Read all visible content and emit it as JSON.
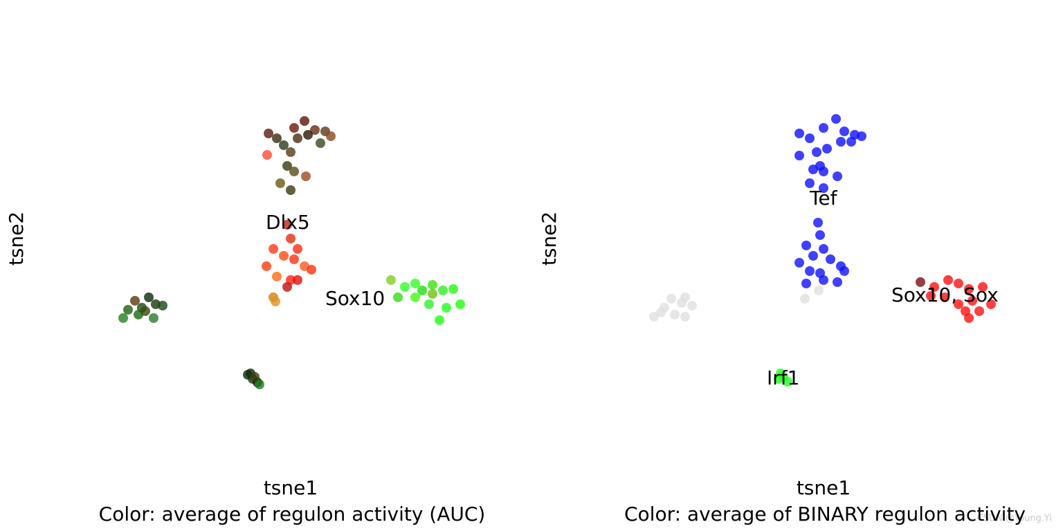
{
  "chart_data": [
    {
      "type": "scatter",
      "xlabel": "tsne1",
      "ylabel": "tsne2",
      "caption": "Color: average of regulon activity (AUC)",
      "xlim": [
        0,
        640
      ],
      "ylim": [
        0,
        640
      ],
      "series": [
        {
          "x": [
            288,
            300,
            310,
            325,
            340,
            355,
            370,
            378,
            363,
            330,
            320,
            315,
            325,
            305,
            320,
            286,
            342,
            345
          ],
          "values": [
            492,
            485,
            475,
            500,
            510,
            497,
            495,
            488,
            478,
            485,
            465,
            445,
            437,
            420,
            410,
            461,
            430,
            490
          ],
          "colors": [
            "#5a1a0a",
            "#3a2a10",
            "#2a3a1a",
            "#6b1a08",
            "#5a1505",
            "#6a2a10",
            "#5a3a1a",
            "#8a4a20",
            "#3a4a20",
            "#4a3010",
            "#5a3a15",
            "#3a3a10",
            "#5a4a10",
            "#6a5a10",
            "#3a3a10",
            "#ff4a30",
            "#a04a20",
            "#2a1a0a"
          ]
        },
        {
          "x": [
            315,
            320,
            295,
            310,
            330,
            285,
            340,
            350,
            300,
            320,
            330,
            315,
            295,
            298,
            325
          ],
          "values": [
            360,
            340,
            325,
            315,
            325,
            300,
            300,
            295,
            285,
            280,
            280,
            270,
            255,
            249,
            310
          ],
          "colors": [
            "#c02010",
            "#e03010",
            "#ff3a10",
            "#ff4a10",
            "#ff2a10",
            "#ff3a10",
            "#ff5a20",
            "#ff3010",
            "#ff6a10",
            "#ff2010",
            "#e01010",
            "#c01010",
            "#d08010",
            "#e09020",
            "#ff3010"
          ]
        },
        {
          "x": [
            78,
            85,
            95,
            105,
            115,
            125,
            135,
            122,
            100,
            110
          ],
          "values": [
            225,
            237,
            250,
            240,
            255,
            245,
            243,
            225,
            230,
            235
          ],
          "colors": [
            "#208020",
            "#206010",
            "#5a3a10",
            "#1a4a10",
            "#0a2a0a",
            "#1a3a10",
            "#1a4a1a",
            "#2a7a2a",
            "#1a6a10",
            "#3a4a10"
          ]
        },
        {
          "x": [
            258,
            265,
            272,
            275,
            262,
            268
          ],
          "values": [
            143,
            137,
            132,
            129,
            145,
            140
          ],
          "colors": [
            "#0a2a0a",
            "#1a3a10",
            "#0a1a05",
            "#208020",
            "#102a10",
            "#3a4010"
          ]
        },
        {
          "x": [
            465,
            475,
            500,
            510,
            525,
            540,
            555,
            520,
            545,
            565,
            535,
            500,
            525,
            485
          ],
          "values": [
            280,
            255,
            275,
            265,
            273,
            265,
            267,
            245,
            240,
            245,
            222,
            255,
            260,
            270
          ],
          "colors": [
            "#80d020",
            "#30e010",
            "#30ff20",
            "#20e010",
            "#40e010",
            "#30f020",
            "#20ff10",
            "#30f030",
            "#20ff20",
            "#20ff10",
            "#20ff10",
            "#40ff10",
            "#70c010",
            "#30ff20"
          ]
        }
      ],
      "annotations": [
        {
          "text": "Dlx5",
          "x": 284,
          "y": 362
        },
        {
          "text": "Sox10",
          "x": 370,
          "y": 252
        }
      ]
    },
    {
      "type": "scatter",
      "xlabel": "tsne1",
      "ylabel": "tsne2",
      "caption": "Color: average of BINARY regulon activity",
      "xlim": [
        0,
        640
      ],
      "ylim": [
        0,
        640
      ],
      "series": [
        {
          "color": "#1010ff",
          "x": [
            285,
            300,
            320,
            338,
            350,
            365,
            375,
            345,
            325,
            310,
            315,
            305,
            320,
            300,
            320,
            285,
            340,
            360,
            312,
            315,
            295,
            320,
            305,
            285,
            330,
            345,
            350,
            300,
            320,
            295,
            340,
            315
          ],
          "values": [
            492,
            485,
            500,
            513,
            495,
            490,
            488,
            480,
            470,
            465,
            445,
            440,
            437,
            420,
            413,
            460,
            430,
            480,
            363,
            345,
            330,
            325,
            315,
            305,
            310,
            300,
            293,
            293,
            280,
            275,
            277,
            290
          ]
        },
        {
          "color": "#e0e0e0",
          "x": [
            75,
            90,
            100,
            115,
            120,
            130,
            105,
            85,
            120,
            293,
            313
          ],
          "values": [
            227,
            240,
            253,
            247,
            255,
            243,
            230,
            233,
            227,
            253,
            265
          ]
        },
        {
          "color": "#7a1010",
          "x": [
            460
          ],
          "values": [
            277
          ]
        },
        {
          "color": "#ff1010",
          "x": [
            480,
            500,
            515,
            530,
            550,
            562,
            545,
            530,
            515,
            495,
            475,
            535,
            525
          ],
          "values": [
            270,
            280,
            275,
            267,
            270,
            245,
            235,
            225,
            245,
            255,
            257,
            250,
            235
          ]
        },
        {
          "color": "#20ff20",
          "x": [
            258,
            268,
            262,
            255
          ],
          "values": [
            145,
            133,
            140,
            137
          ]
        }
      ],
      "annotations": [
        {
          "text": "Tef",
          "x": 300,
          "y": 397
        },
        {
          "text": "Irf1",
          "x": 238,
          "y": 137
        },
        {
          "text": "Sox10, Sox",
          "x": 418,
          "y": 257
        }
      ]
    }
  ],
  "watermark": "CSDN @Young.Yi"
}
